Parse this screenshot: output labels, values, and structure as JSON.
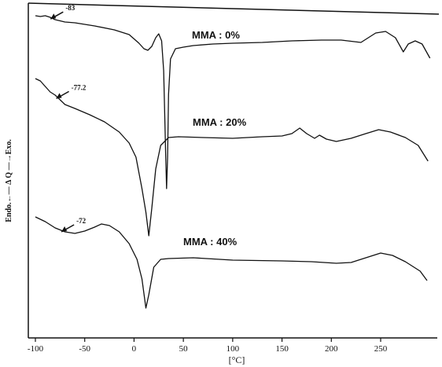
{
  "chart_data": {
    "type": "line",
    "xlabel": "[°C]",
    "ylabel": "Endo.←— Δ Q —→Exo.",
    "xlim": [
      -105,
      305
    ],
    "x_ticks": [
      -100,
      -50,
      0,
      50,
      100,
      150,
      200,
      250
    ],
    "grid": false,
    "series": [
      {
        "name": "MMA : 0%",
        "annotation": "-83",
        "annotation_x": -83,
        "points": [
          [
            -100,
            20
          ],
          [
            -95,
            21
          ],
          [
            -90,
            20
          ],
          [
            -85,
            22
          ],
          [
            -80,
            25
          ],
          [
            -70,
            28
          ],
          [
            -60,
            29
          ],
          [
            -40,
            33
          ],
          [
            -20,
            38
          ],
          [
            -5,
            44
          ],
          [
            5,
            55
          ],
          [
            10,
            62
          ],
          [
            14,
            64
          ],
          [
            18,
            59
          ],
          [
            22,
            48
          ],
          [
            25,
            43
          ],
          [
            28,
            52
          ],
          [
            30,
            90
          ],
          [
            31,
            140
          ],
          [
            32,
            195
          ],
          [
            33,
            240
          ],
          [
            34,
            200
          ],
          [
            35,
            120
          ],
          [
            37,
            75
          ],
          [
            42,
            62
          ],
          [
            50,
            60
          ],
          [
            60,
            58
          ],
          [
            80,
            56
          ],
          [
            100,
            55
          ],
          [
            130,
            54
          ],
          [
            160,
            52
          ],
          [
            190,
            51
          ],
          [
            210,
            51
          ],
          [
            230,
            54
          ],
          [
            245,
            42
          ],
          [
            255,
            40
          ],
          [
            265,
            48
          ],
          [
            273,
            66
          ],
          [
            278,
            56
          ],
          [
            285,
            52
          ],
          [
            292,
            56
          ],
          [
            300,
            74
          ]
        ]
      },
      {
        "name": "MMA : 20%",
        "annotation": "-77.2",
        "annotation_x": -77.2,
        "points": [
          [
            -100,
            100
          ],
          [
            -95,
            103
          ],
          [
            -90,
            110
          ],
          [
            -85,
            117
          ],
          [
            -80,
            121
          ],
          [
            -75,
            127
          ],
          [
            -70,
            133
          ],
          [
            -60,
            138
          ],
          [
            -45,
            146
          ],
          [
            -30,
            155
          ],
          [
            -15,
            168
          ],
          [
            -5,
            182
          ],
          [
            2,
            200
          ],
          [
            8,
            240
          ],
          [
            12,
            270
          ],
          [
            15,
            300
          ],
          [
            18,
            265
          ],
          [
            22,
            215
          ],
          [
            27,
            185
          ],
          [
            35,
            175
          ],
          [
            45,
            174
          ],
          [
            70,
            175
          ],
          [
            100,
            176
          ],
          [
            130,
            174
          ],
          [
            150,
            173
          ],
          [
            160,
            170
          ],
          [
            168,
            163
          ],
          [
            175,
            170
          ],
          [
            183,
            176
          ],
          [
            188,
            172
          ],
          [
            195,
            177
          ],
          [
            205,
            180
          ],
          [
            220,
            176
          ],
          [
            235,
            170
          ],
          [
            248,
            165
          ],
          [
            260,
            168
          ],
          [
            275,
            175
          ],
          [
            288,
            185
          ],
          [
            298,
            205
          ]
        ]
      },
      {
        "name": "MMA : 40%",
        "annotation": "-72",
        "annotation_x": -72,
        "points": [
          [
            -100,
            276
          ],
          [
            -90,
            282
          ],
          [
            -80,
            290
          ],
          [
            -70,
            295
          ],
          [
            -60,
            297
          ],
          [
            -50,
            294
          ],
          [
            -40,
            289
          ],
          [
            -33,
            285
          ],
          [
            -25,
            287
          ],
          [
            -15,
            295
          ],
          [
            -5,
            310
          ],
          [
            3,
            330
          ],
          [
            8,
            355
          ],
          [
            12,
            392
          ],
          [
            15,
            375
          ],
          [
            20,
            340
          ],
          [
            27,
            330
          ],
          [
            35,
            329
          ],
          [
            60,
            328
          ],
          [
            100,
            331
          ],
          [
            150,
            332
          ],
          [
            180,
            333
          ],
          [
            205,
            335
          ],
          [
            220,
            334
          ],
          [
            235,
            328
          ],
          [
            250,
            322
          ],
          [
            262,
            325
          ],
          [
            275,
            333
          ],
          [
            290,
            345
          ],
          [
            297,
            357
          ]
        ]
      }
    ]
  }
}
